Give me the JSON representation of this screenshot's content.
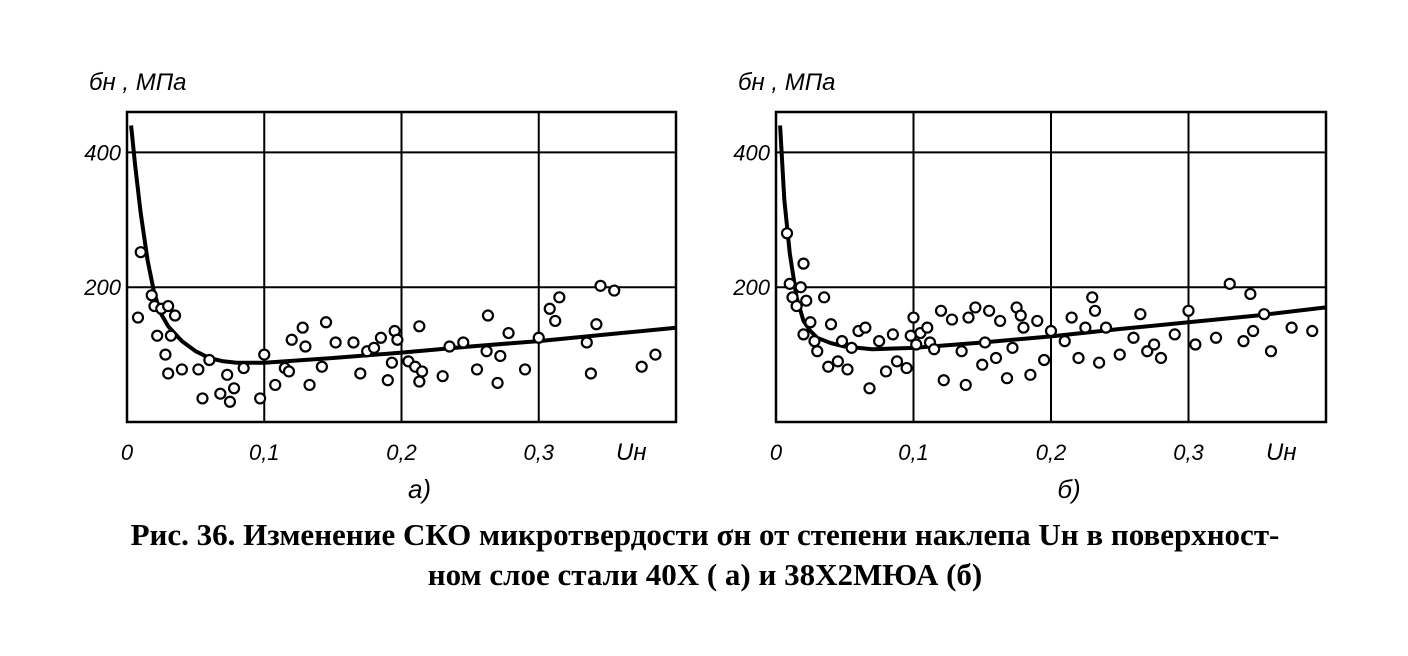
{
  "caption": {
    "line1": "Рис. 36. Изменение СКО микротвердости σн от степени наклепа Uн в поверхност-",
    "line2": "ном слое стали 40Х ( а) и 38Х2МЮА (б)"
  },
  "chart_data": [
    {
      "type": "scatter",
      "panel_label": "а)",
      "ylabel": "бн , МПа",
      "xlabel": "Uн",
      "xlim": [
        0,
        0.4
      ],
      "ylim": [
        0,
        460
      ],
      "x_ticks": [
        0,
        0.1,
        0.2,
        0.3
      ],
      "x_tick_labels": [
        "0",
        "0,1",
        "0,2",
        "0,3"
      ],
      "y_ticks": [
        200,
        400
      ],
      "y_tick_labels": [
        "200",
        "400"
      ],
      "grid": true,
      "points": [
        [
          0.01,
          252
        ],
        [
          0.008,
          155
        ],
        [
          0.018,
          188
        ],
        [
          0.02,
          172
        ],
        [
          0.025,
          168
        ],
        [
          0.03,
          172
        ],
        [
          0.035,
          158
        ],
        [
          0.022,
          128
        ],
        [
          0.028,
          100
        ],
        [
          0.032,
          128
        ],
        [
          0.03,
          72
        ],
        [
          0.04,
          78
        ],
        [
          0.052,
          78
        ],
        [
          0.055,
          35
        ],
        [
          0.06,
          92
        ],
        [
          0.068,
          42
        ],
        [
          0.073,
          70
        ],
        [
          0.075,
          30
        ],
        [
          0.078,
          50
        ],
        [
          0.085,
          80
        ],
        [
          0.097,
          35
        ],
        [
          0.1,
          100
        ],
        [
          0.108,
          55
        ],
        [
          0.115,
          80
        ],
        [
          0.118,
          75
        ],
        [
          0.12,
          122
        ],
        [
          0.128,
          140
        ],
        [
          0.13,
          112
        ],
        [
          0.133,
          55
        ],
        [
          0.142,
          82
        ],
        [
          0.145,
          148
        ],
        [
          0.152,
          118
        ],
        [
          0.165,
          118
        ],
        [
          0.17,
          72
        ],
        [
          0.175,
          105
        ],
        [
          0.18,
          110
        ],
        [
          0.185,
          125
        ],
        [
          0.19,
          62
        ],
        [
          0.193,
          88
        ],
        [
          0.195,
          135
        ],
        [
          0.197,
          122
        ],
        [
          0.205,
          90
        ],
        [
          0.21,
          82
        ],
        [
          0.213,
          142
        ],
        [
          0.213,
          60
        ],
        [
          0.215,
          75
        ],
        [
          0.23,
          68
        ],
        [
          0.235,
          112
        ],
        [
          0.245,
          118
        ],
        [
          0.255,
          78
        ],
        [
          0.262,
          105
        ],
        [
          0.263,
          158
        ],
        [
          0.27,
          58
        ],
        [
          0.272,
          98
        ],
        [
          0.278,
          132
        ],
        [
          0.29,
          78
        ],
        [
          0.3,
          125
        ],
        [
          0.308,
          168
        ],
        [
          0.312,
          150
        ],
        [
          0.315,
          185
        ],
        [
          0.335,
          118
        ],
        [
          0.338,
          72
        ],
        [
          0.342,
          145
        ],
        [
          0.345,
          202
        ],
        [
          0.355,
          195
        ],
        [
          0.375,
          82
        ],
        [
          0.385,
          100
        ]
      ],
      "curve": [
        [
          0.003,
          440
        ],
        [
          0.006,
          380
        ],
        [
          0.01,
          310
        ],
        [
          0.015,
          240
        ],
        [
          0.02,
          190
        ],
        [
          0.025,
          160
        ],
        [
          0.03,
          142
        ],
        [
          0.04,
          120
        ],
        [
          0.05,
          105
        ],
        [
          0.06,
          95
        ],
        [
          0.07,
          90
        ],
        [
          0.08,
          88
        ],
        [
          0.1,
          88
        ],
        [
          0.15,
          95
        ],
        [
          0.2,
          103
        ],
        [
          0.25,
          112
        ],
        [
          0.3,
          120
        ],
        [
          0.35,
          130
        ],
        [
          0.4,
          140
        ]
      ]
    },
    {
      "type": "scatter",
      "panel_label": "б)",
      "ylabel": "бн , МПа",
      "xlabel": "Uн",
      "xlim": [
        0,
        0.4
      ],
      "ylim": [
        0,
        460
      ],
      "x_ticks": [
        0,
        0.1,
        0.2,
        0.3
      ],
      "x_tick_labels": [
        "0",
        "0,1",
        "0,2",
        "0,3"
      ],
      "y_ticks": [
        200,
        400
      ],
      "y_tick_labels": [
        "200",
        "400"
      ],
      "grid": true,
      "points": [
        [
          0.008,
          280
        ],
        [
          0.01,
          205
        ],
        [
          0.012,
          185
        ],
        [
          0.015,
          172
        ],
        [
          0.018,
          200
        ],
        [
          0.02,
          235
        ],
        [
          0.022,
          180
        ],
        [
          0.025,
          148
        ],
        [
          0.02,
          130
        ],
        [
          0.028,
          120
        ],
        [
          0.03,
          105
        ],
        [
          0.035,
          185
        ],
        [
          0.038,
          82
        ],
        [
          0.04,
          145
        ],
        [
          0.045,
          90
        ],
        [
          0.048,
          120
        ],
        [
          0.052,
          78
        ],
        [
          0.055,
          110
        ],
        [
          0.06,
          135
        ],
        [
          0.065,
          140
        ],
        [
          0.068,
          50
        ],
        [
          0.075,
          120
        ],
        [
          0.08,
          75
        ],
        [
          0.085,
          130
        ],
        [
          0.088,
          90
        ],
        [
          0.095,
          80
        ],
        [
          0.098,
          128
        ],
        [
          0.1,
          155
        ],
        [
          0.102,
          115
        ],
        [
          0.105,
          132
        ],
        [
          0.11,
          140
        ],
        [
          0.112,
          118
        ],
        [
          0.115,
          108
        ],
        [
          0.12,
          165
        ],
        [
          0.122,
          62
        ],
        [
          0.128,
          152
        ],
        [
          0.135,
          105
        ],
        [
          0.138,
          55
        ],
        [
          0.14,
          155
        ],
        [
          0.145,
          170
        ],
        [
          0.15,
          85
        ],
        [
          0.152,
          118
        ],
        [
          0.155,
          165
        ],
        [
          0.16,
          95
        ],
        [
          0.163,
          150
        ],
        [
          0.168,
          65
        ],
        [
          0.172,
          110
        ],
        [
          0.175,
          170
        ],
        [
          0.178,
          158
        ],
        [
          0.18,
          140
        ],
        [
          0.185,
          70
        ],
        [
          0.19,
          150
        ],
        [
          0.195,
          92
        ],
        [
          0.2,
          135
        ],
        [
          0.21,
          120
        ],
        [
          0.215,
          155
        ],
        [
          0.22,
          95
        ],
        [
          0.225,
          140
        ],
        [
          0.23,
          185
        ],
        [
          0.232,
          165
        ],
        [
          0.235,
          88
        ],
        [
          0.24,
          140
        ],
        [
          0.25,
          100
        ],
        [
          0.26,
          125
        ],
        [
          0.265,
          160
        ],
        [
          0.27,
          105
        ],
        [
          0.275,
          115
        ],
        [
          0.28,
          95
        ],
        [
          0.29,
          130
        ],
        [
          0.3,
          165
        ],
        [
          0.305,
          115
        ],
        [
          0.32,
          125
        ],
        [
          0.33,
          205
        ],
        [
          0.34,
          120
        ],
        [
          0.345,
          190
        ],
        [
          0.347,
          135
        ],
        [
          0.36,
          105
        ],
        [
          0.355,
          160
        ],
        [
          0.375,
          140
        ],
        [
          0.39,
          135
        ]
      ],
      "curve": [
        [
          0.003,
          440
        ],
        [
          0.006,
          330
        ],
        [
          0.01,
          250
        ],
        [
          0.015,
          185
        ],
        [
          0.02,
          150
        ],
        [
          0.025,
          135
        ],
        [
          0.03,
          125
        ],
        [
          0.04,
          117
        ],
        [
          0.05,
          112
        ],
        [
          0.07,
          108
        ],
        [
          0.1,
          110
        ],
        [
          0.15,
          118
        ],
        [
          0.2,
          127
        ],
        [
          0.25,
          138
        ],
        [
          0.3,
          148
        ],
        [
          0.35,
          158
        ],
        [
          0.4,
          170
        ]
      ]
    }
  ]
}
